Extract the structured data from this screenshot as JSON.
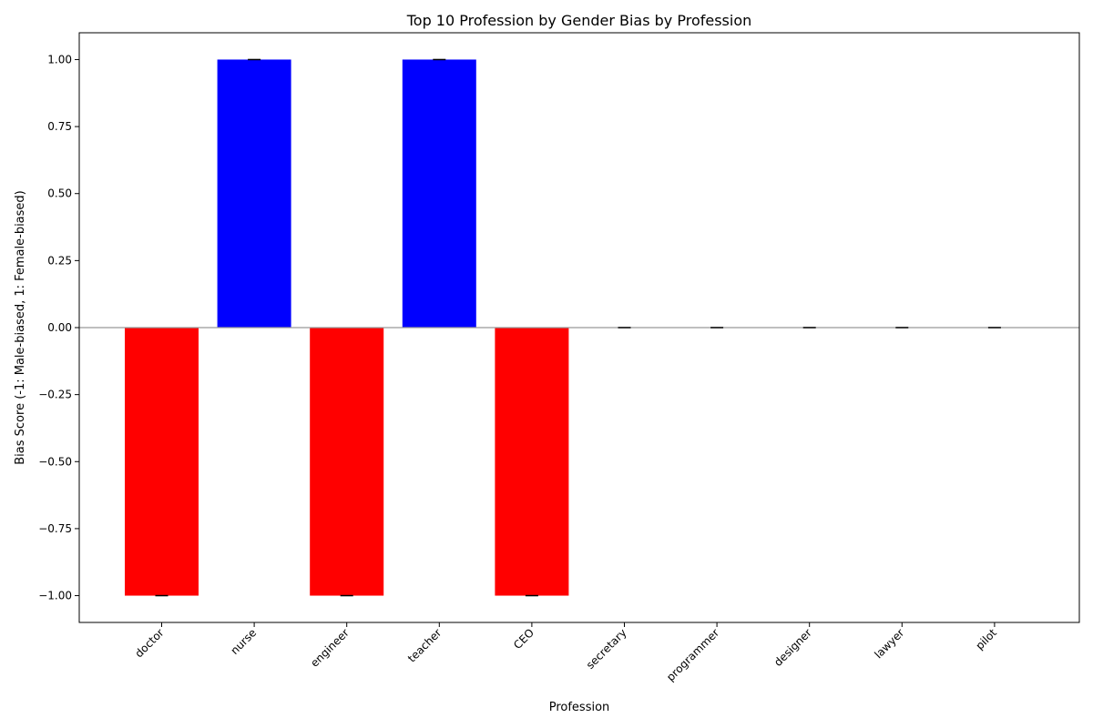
{
  "chart_data": {
    "type": "bar",
    "title": "Top 10 Profession by Gender Bias by Profession",
    "xlabel": "Profession",
    "ylabel": "Bias Score (-1: Male-biased, 1: Female-biased)",
    "categories": [
      "doctor",
      "nurse",
      "engineer",
      "teacher",
      "CEO",
      "secretary",
      "programmer",
      "designer",
      "lawyer",
      "pilot"
    ],
    "values": [
      -1,
      1,
      -1,
      1,
      -1,
      0,
      0,
      0,
      0,
      0
    ],
    "errors": [
      0,
      0,
      0,
      0,
      0,
      0,
      0,
      0,
      0,
      0
    ],
    "ylim": [
      -1.1,
      1.1
    ],
    "yticks": [
      -1.0,
      -0.75,
      -0.5,
      -0.25,
      0.0,
      0.25,
      0.5,
      0.75,
      1.0
    ],
    "ytick_labels": [
      "−1.00",
      "−0.75",
      "−0.50",
      "−0.25",
      "0.00",
      "0.25",
      "0.50",
      "0.75",
      "1.00"
    ],
    "grid": false,
    "zero_line": true,
    "colors": {
      "negative": "#ff0000",
      "positive": "#0000ff",
      "zero_line": "#999999",
      "axis": "#000000"
    }
  }
}
